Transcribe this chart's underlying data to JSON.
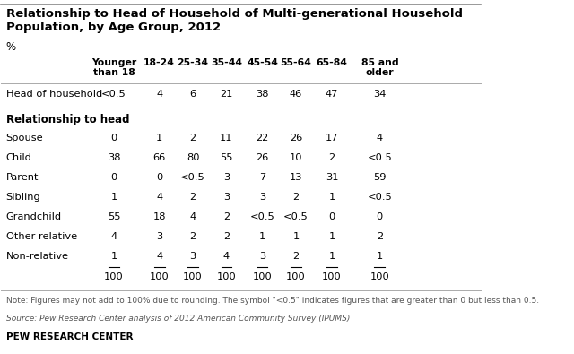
{
  "title_line1": "Relationship to Head of Household of Multi-generational Household",
  "title_line2": "Population, by Age Group, 2012",
  "percent_label": "%",
  "col_headers": [
    "Younger\nthan 18",
    "18-24",
    "25-34",
    "35-44",
    "45-54",
    "55-64",
    "65-84",
    "85 and\nolder"
  ],
  "section1_label": "Head of household",
  "section1_data": [
    "<0.5",
    "4",
    "6",
    "21",
    "38",
    "46",
    "47",
    "34"
  ],
  "section2_header": "Relationship to head",
  "rows": [
    {
      "label": "Spouse",
      "data": [
        "0",
        "1",
        "2",
        "11",
        "22",
        "26",
        "17",
        "4"
      ],
      "underline": [
        false,
        false,
        false,
        false,
        false,
        false,
        false,
        false
      ]
    },
    {
      "label": "Child",
      "data": [
        "38",
        "66",
        "80",
        "55",
        "26",
        "10",
        "2",
        "<0.5"
      ],
      "underline": [
        false,
        false,
        false,
        false,
        false,
        false,
        false,
        false
      ]
    },
    {
      "label": "Parent",
      "data": [
        "0",
        "0",
        "<0.5",
        "3",
        "7",
        "13",
        "31",
        "59"
      ],
      "underline": [
        false,
        false,
        false,
        false,
        false,
        false,
        false,
        false
      ]
    },
    {
      "label": "Sibling",
      "data": [
        "1",
        "4",
        "2",
        "3",
        "3",
        "2",
        "1",
        "<0.5"
      ],
      "underline": [
        false,
        false,
        false,
        false,
        false,
        false,
        false,
        false
      ]
    },
    {
      "label": "Grandchild",
      "data": [
        "55",
        "18",
        "4",
        "2",
        "<0.5",
        "<0.5",
        "0",
        "0"
      ],
      "underline": [
        false,
        false,
        false,
        false,
        false,
        false,
        false,
        false
      ]
    },
    {
      "label": "Other relative",
      "data": [
        "4",
        "3",
        "2",
        "2",
        "1",
        "1",
        "1",
        "2"
      ],
      "underline": [
        false,
        false,
        false,
        false,
        false,
        false,
        false,
        false
      ]
    },
    {
      "label": "Non-relative",
      "data": [
        "1",
        "4",
        "3",
        "4",
        "3",
        "2",
        "1",
        "1"
      ],
      "underline": [
        true,
        true,
        true,
        true,
        true,
        true,
        true,
        true
      ]
    }
  ],
  "total_row": [
    "100",
    "100",
    "100",
    "100",
    "100",
    "100",
    "100",
    "100"
  ],
  "note": "Note: Figures may not add to 100% due to rounding. The symbol \"<0.5\" indicates figures that are greater than 0 but less than 0.5.",
  "source": "Source: Pew Research Center analysis of 2012 American Community Survey (IPUMS)",
  "footer": "PEW RESEARCH CENTER",
  "bg_color": "#ffffff",
  "text_color": "#000000"
}
